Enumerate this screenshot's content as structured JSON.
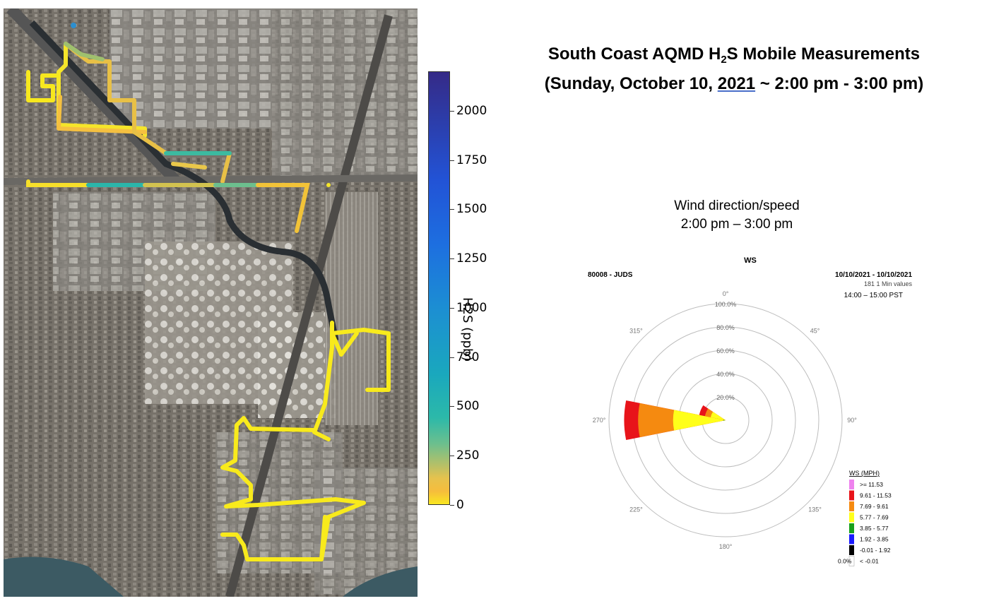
{
  "title": {
    "line1_prefix": "South Coast AQMD H",
    "line1_subscript": "2",
    "line1_suffix": "S Mobile Measurements",
    "line2_open": "(Sunday, October 10, ",
    "line2_year": "2021",
    "line2_rest": " ~ 2:00 pm -  3:00 pm)"
  },
  "colorbar": {
    "label": "H2S (ppb)",
    "min": 0,
    "max": 2200,
    "ticks": [
      "0",
      "250",
      "500",
      "750",
      "1000",
      "1250",
      "1500",
      "1750",
      "2000"
    ],
    "tick_values": [
      0,
      250,
      500,
      750,
      1000,
      1250,
      1500,
      1750,
      2000
    ]
  },
  "wind_caption": {
    "line1": "Wind direction/speed",
    "line2": "2:00 pm – 3:00 pm"
  },
  "wind_rose": {
    "title": "WS",
    "station": "80008 - JUDS",
    "date_range": "10/10/2021 - 10/10/2021",
    "sample_note": "181 1 Min values",
    "time_window": "14:00 – 15:00 PST",
    "direction_labels": [
      "0°",
      "45°",
      "90°",
      "135°",
      "180°",
      "225°",
      "270°",
      "315°"
    ],
    "ring_labels": [
      "20.0%",
      "40.0%",
      "60.0%",
      "80.0%",
      "100.0%"
    ],
    "ring_values": [
      20,
      40,
      60,
      80,
      100
    ],
    "calm_label": "0.0%",
    "petals": [
      {
        "direction": 270,
        "bins": [
          {
            "class": "3.85 - 5.77",
            "cum_percent": 2
          },
          {
            "class": "5.77 - 7.69",
            "cum_percent": 45
          },
          {
            "class": "7.69 - 9.61",
            "cum_percent": 75
          },
          {
            "class": "9.61 - 11.53",
            "cum_percent": 87
          }
        ]
      },
      {
        "direction": 292.5,
        "bins": [
          {
            "class": "5.77 - 7.69",
            "cum_percent": 13
          },
          {
            "class": "7.69 - 9.61",
            "cum_percent": 18
          },
          {
            "class": "9.61 - 11.53",
            "cum_percent": 23
          }
        ]
      }
    ],
    "legend": {
      "title": "WS (MPH)",
      "entries": [
        {
          "label": ">= 11.53",
          "color": "#ee82ee"
        },
        {
          "label": "9.61 - 11.53",
          "color": "#e8141a"
        },
        {
          "label": "7.69 - 9.61",
          "color": "#f58a10"
        },
        {
          "label": "5.77 - 7.69",
          "color": "#ffff1a"
        },
        {
          "label": "3.85 - 5.77",
          "color": "#18a01c"
        },
        {
          "label": "1.92 - 3.85",
          "color": "#1a1aff"
        },
        {
          "label": "-0.01 - 1.92",
          "color": "#000000"
        },
        {
          "label": "< -0.01",
          "color": "#ffffff"
        }
      ]
    }
  }
}
